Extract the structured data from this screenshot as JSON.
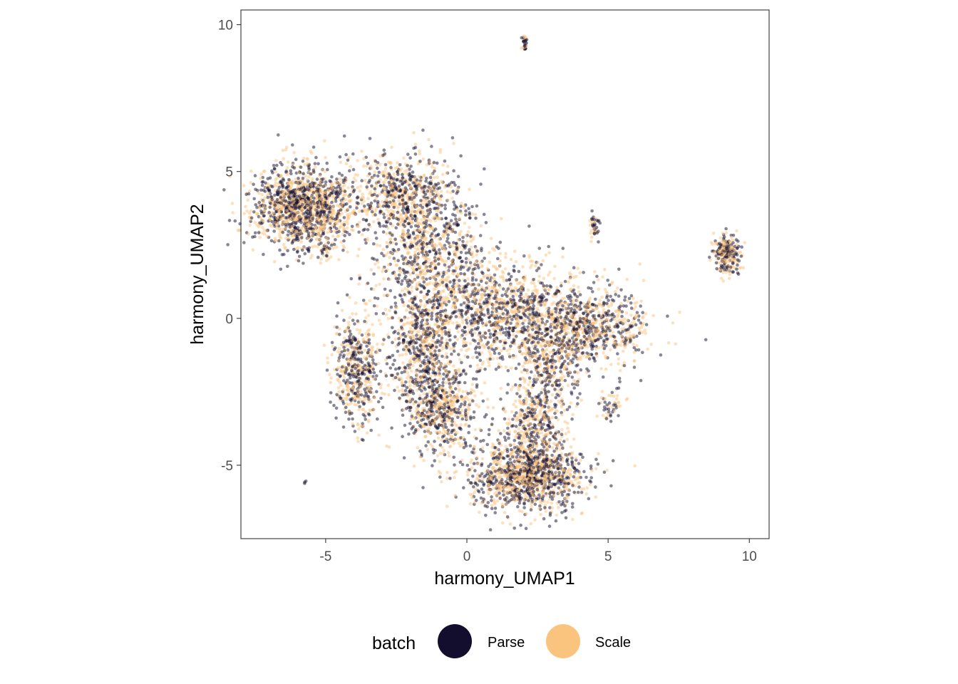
{
  "chart_data": {
    "type": "scatter",
    "xlabel": "harmony_UMAP1",
    "ylabel": "harmony_UMAP2",
    "xlim": [
      -8,
      10.7
    ],
    "ylim": [
      -7.5,
      10.5
    ],
    "x_ticks": [
      -5,
      0,
      5,
      10
    ],
    "x_tick_labels": [
      "-5",
      "0",
      "5",
      "10"
    ],
    "y_ticks": [
      -5,
      0,
      5,
      10
    ],
    "y_tick_labels": [
      "-5",
      "0",
      "5",
      "10"
    ],
    "grid": false,
    "legend_position": "bottom",
    "legend": {
      "title": "batch",
      "entries": [
        {
          "label": "Parse",
          "color": "#140E2E"
        },
        {
          "label": "Scale",
          "color": "#FBC47E"
        }
      ]
    },
    "point_alpha": 0.5,
    "clusters": [
      {
        "name": "top-left",
        "center": [
          -5.8,
          3.8
        ],
        "spread": [
          0.9,
          0.7
        ],
        "n": 1400
      },
      {
        "name": "top-middle-arc",
        "center": [
          -2.3,
          4.2
        ],
        "spread": [
          1.0,
          0.7
        ],
        "n": 700
      },
      {
        "name": "middle-branch",
        "center": [
          -1.3,
          2.2
        ],
        "spread": [
          0.9,
          1.0
        ],
        "n": 700
      },
      {
        "name": "center-band",
        "center": [
          1.2,
          0.2
        ],
        "spread": [
          1.8,
          0.9
        ],
        "n": 1400
      },
      {
        "name": "right-band",
        "center": [
          4.3,
          -0.4
        ],
        "spread": [
          1.1,
          0.6
        ],
        "n": 700
      },
      {
        "name": "left-lower",
        "center": [
          -3.9,
          -1.8
        ],
        "spread": [
          0.4,
          0.9
        ],
        "n": 500
      },
      {
        "name": "middle-lower",
        "center": [
          -1.6,
          -1.0
        ],
        "spread": [
          0.6,
          1.0
        ],
        "n": 500
      },
      {
        "name": "lower-cone",
        "center": [
          -0.9,
          -3.1
        ],
        "spread": [
          0.6,
          0.8
        ],
        "n": 600
      },
      {
        "name": "bottom-blob",
        "center": [
          2.1,
          -5.3
        ],
        "spread": [
          1.0,
          0.6
        ],
        "n": 1300
      },
      {
        "name": "bottom-stem",
        "center": [
          2.4,
          -3.4
        ],
        "spread": [
          0.5,
          0.6
        ],
        "n": 300
      },
      {
        "name": "right-small",
        "center": [
          2.9,
          -1.8
        ],
        "spread": [
          0.6,
          0.8
        ],
        "n": 300
      },
      {
        "name": "far-right",
        "center": [
          9.2,
          2.2
        ],
        "spread": [
          0.25,
          0.35
        ],
        "n": 250
      },
      {
        "name": "mid-right-small",
        "center": [
          4.5,
          3.1
        ],
        "spread": [
          0.1,
          0.2
        ],
        "n": 40
      },
      {
        "name": "top-small",
        "center": [
          2.05,
          9.35
        ],
        "spread": [
          0.05,
          0.18
        ],
        "n": 30
      },
      {
        "name": "right-tail",
        "center": [
          5.1,
          -2.9
        ],
        "spread": [
          0.25,
          0.3
        ],
        "n": 50
      },
      {
        "name": "left-small",
        "center": [
          -5.0,
          2.35
        ],
        "spread": [
          0.15,
          0.1
        ],
        "n": 25
      },
      {
        "name": "outlier",
        "center": [
          -5.7,
          -5.6
        ],
        "spread": [
          0.03,
          0.03
        ],
        "n": 3
      }
    ]
  }
}
